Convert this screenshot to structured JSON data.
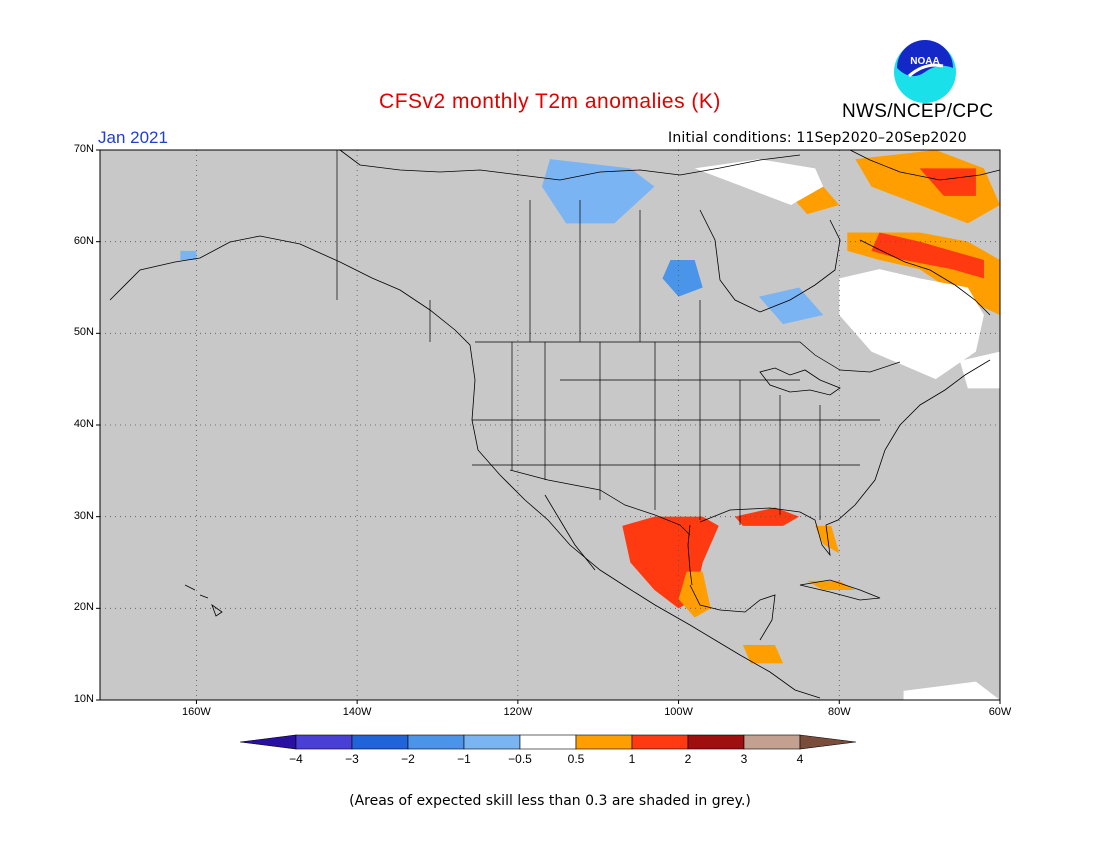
{
  "header": {
    "title": "CFSv2 monthly T2m anomalies (K)",
    "agency": "NWS/NCEP/CPC",
    "logo_text": "NOAA",
    "month": "Jan 2021",
    "initial_conditions": "Initial conditions: 11Sep2020–20Sep2020"
  },
  "map": {
    "lon_range": [
      -172,
      -60
    ],
    "lat_range": [
      10,
      70
    ],
    "lat_ticks": [
      {
        "value": 70,
        "label": "70N"
      },
      {
        "value": 60,
        "label": "60N"
      },
      {
        "value": 50,
        "label": "50N"
      },
      {
        "value": 40,
        "label": "40N"
      },
      {
        "value": 30,
        "label": "30N"
      },
      {
        "value": 20,
        "label": "20N"
      },
      {
        "value": 10,
        "label": "10N"
      }
    ],
    "lon_ticks": [
      {
        "value": -160,
        "label": "160W"
      },
      {
        "value": -140,
        "label": "140W"
      },
      {
        "value": -120,
        "label": "120W"
      },
      {
        "value": -100,
        "label": "100W"
      },
      {
        "value": -80,
        "label": "80W"
      },
      {
        "value": -60,
        "label": "60W"
      }
    ],
    "background_color": "#c8c8c8",
    "anomaly_regions": [
      {
        "name": "labrador-warm",
        "level": "0.5-1",
        "polygon": [
          [
            -78,
            69
          ],
          [
            -68,
            70
          ],
          [
            -62,
            68
          ],
          [
            -60,
            64
          ],
          [
            -64,
            62
          ],
          [
            -70,
            64
          ],
          [
            -76,
            66
          ]
        ]
      },
      {
        "name": "labrador-hot",
        "level": "1-2",
        "polygon": [
          [
            -70,
            68
          ],
          [
            -63,
            68
          ],
          [
            -63,
            65
          ],
          [
            -67,
            65
          ]
        ]
      },
      {
        "name": "quebec-warm",
        "level": "0.5-1",
        "polygon": [
          [
            -79,
            61
          ],
          [
            -70,
            61
          ],
          [
            -64,
            60
          ],
          [
            -60,
            58
          ],
          [
            -60,
            52
          ],
          [
            -65,
            54
          ],
          [
            -70,
            57
          ],
          [
            -75,
            58
          ],
          [
            -79,
            59
          ]
        ]
      },
      {
        "name": "quebec-hot",
        "level": "1-2",
        "polygon": [
          [
            -75,
            61
          ],
          [
            -70,
            60
          ],
          [
            -66,
            59
          ],
          [
            -62,
            58
          ],
          [
            -62,
            56
          ],
          [
            -66,
            57
          ],
          [
            -72,
            58
          ],
          [
            -76,
            59
          ]
        ]
      },
      {
        "name": "quebec-neutral",
        "level": "-0.5-0.5",
        "polygon": [
          [
            -80,
            56
          ],
          [
            -75,
            57
          ],
          [
            -70,
            56
          ],
          [
            -64,
            55
          ],
          [
            -62,
            52
          ],
          [
            -63,
            48
          ],
          [
            -68,
            45
          ],
          [
            -76,
            48
          ],
          [
            -80,
            52
          ]
        ]
      },
      {
        "name": "hudson-warm",
        "level": "0.5-1",
        "polygon": [
          [
            -86,
            65
          ],
          [
            -82,
            66
          ],
          [
            -80,
            64
          ],
          [
            -84,
            63
          ]
        ]
      },
      {
        "name": "north-neutral",
        "level": "-0.5-0.5",
        "polygon": [
          [
            -98,
            68
          ],
          [
            -90,
            69
          ],
          [
            -83,
            68
          ],
          [
            -82,
            66
          ],
          [
            -86,
            64
          ],
          [
            -92,
            66
          ]
        ]
      },
      {
        "name": "nunavut-cool",
        "level": "-1--0.5",
        "polygon": [
          [
            -116,
            69
          ],
          [
            -106,
            68
          ],
          [
            -103,
            66
          ],
          [
            -108,
            62
          ],
          [
            -114,
            62
          ],
          [
            -117,
            66
          ]
        ]
      },
      {
        "name": "hudson-bay-cool",
        "level": "-2--1",
        "polygon": [
          [
            -101,
            58
          ],
          [
            -98,
            58
          ],
          [
            -97,
            55
          ],
          [
            -100,
            54
          ],
          [
            -102,
            56
          ]
        ]
      },
      {
        "name": "ontario-cool",
        "level": "-1--0.5",
        "polygon": [
          [
            -90,
            54
          ],
          [
            -85,
            55
          ],
          [
            -82,
            52
          ],
          [
            -87,
            51
          ]
        ]
      },
      {
        "name": "alaska-cool",
        "level": "-1--0.5",
        "polygon": [
          [
            -162,
            59
          ],
          [
            -160,
            59
          ],
          [
            -160,
            58
          ],
          [
            -162,
            58
          ]
        ]
      },
      {
        "name": "mexico-hot",
        "level": "1-2",
        "polygon": [
          [
            -107,
            29
          ],
          [
            -103,
            30
          ],
          [
            -97,
            30
          ],
          [
            -95,
            29
          ],
          [
            -97,
            25
          ],
          [
            -98,
            21
          ],
          [
            -100,
            20
          ],
          [
            -103,
            22
          ],
          [
            -106,
            25
          ]
        ]
      },
      {
        "name": "mexico-warm",
        "level": "0.5-1",
        "polygon": [
          [
            -99,
            24
          ],
          [
            -97,
            24
          ],
          [
            -96,
            20
          ],
          [
            -98,
            19
          ],
          [
            -100,
            21
          ]
        ]
      },
      {
        "name": "gulf-coast-hot",
        "level": "1-2",
        "polygon": [
          [
            -93,
            30
          ],
          [
            -88,
            31
          ],
          [
            -85,
            30
          ],
          [
            -87,
            29
          ],
          [
            -92,
            29
          ]
        ]
      },
      {
        "name": "florida-warm",
        "level": "0.5-1",
        "polygon": [
          [
            -83,
            29
          ],
          [
            -81,
            29
          ],
          [
            -80,
            26
          ],
          [
            -82,
            27
          ]
        ]
      },
      {
        "name": "cuba-warm",
        "level": "0.5-1",
        "polygon": [
          [
            -84,
            23
          ],
          [
            -80,
            23
          ],
          [
            -78,
            22
          ],
          [
            -82,
            22
          ]
        ]
      },
      {
        "name": "central-america-warm",
        "level": "0.5-1",
        "polygon": [
          [
            -92,
            16
          ],
          [
            -88,
            16
          ],
          [
            -87,
            14
          ],
          [
            -91,
            14
          ]
        ]
      },
      {
        "name": "newfoundland-neutral",
        "level": "-0.5-0.5",
        "polygon": [
          [
            -65,
            47
          ],
          [
            -60,
            48
          ],
          [
            -60,
            44
          ],
          [
            -64,
            44
          ]
        ]
      },
      {
        "name": "caribbean-neutral",
        "level": "-0.5-0.5",
        "polygon": [
          [
            -72,
            11
          ],
          [
            -63,
            12
          ],
          [
            -60,
            10
          ],
          [
            -72,
            10
          ]
        ]
      }
    ]
  },
  "colorbar": {
    "colors": [
      "#2a0fa5",
      "#4a3fd4",
      "#1f64d8",
      "#4a94ea",
      "#7ab4f2",
      "#ffffff",
      "#ff9e00",
      "#ff3a10",
      "#a00f0f",
      "#c4a090",
      "#7a4c3a"
    ],
    "labels": [
      "−4",
      "−3",
      "−2",
      "−1",
      "−0.5",
      "0.5",
      "1",
      "2",
      "3",
      "4"
    ],
    "level_colors": {
      "-2--1": "#4a94ea",
      "-1--0.5": "#7ab4f2",
      "-0.5-0.5": "#ffffff",
      "0.5-1": "#ff9e00",
      "1-2": "#ff3a10"
    }
  },
  "footnote": "(Areas of expected skill less than 0.3 are shaded in grey.)"
}
